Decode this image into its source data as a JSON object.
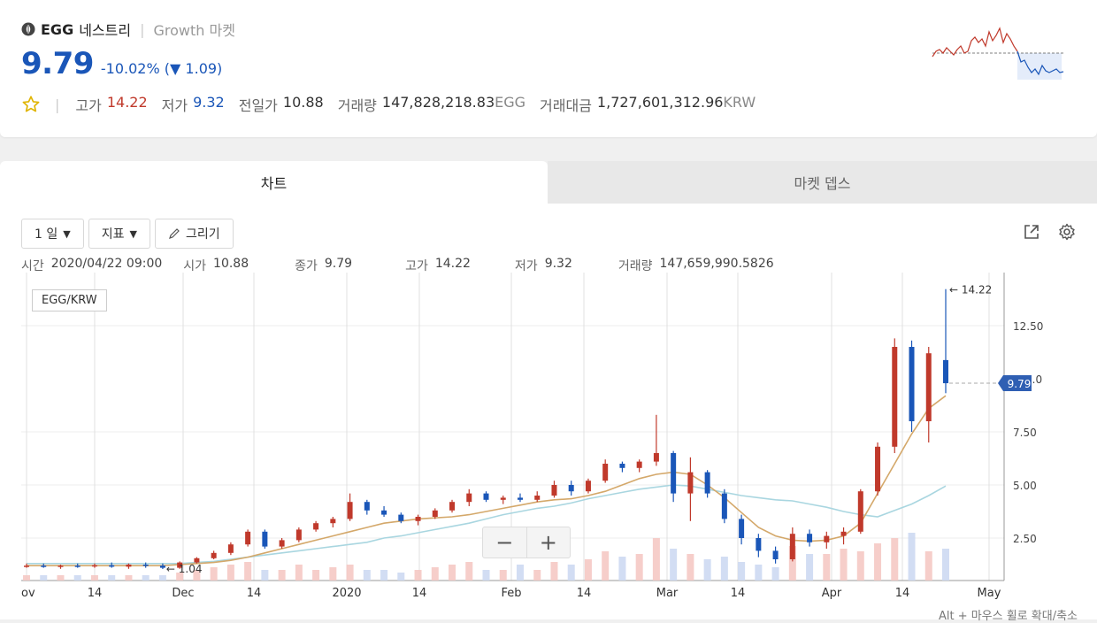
{
  "header": {
    "symbol": "EGG",
    "name_kr": "네스트리",
    "market": "Growth 마켓",
    "price": "9.79",
    "change_pct": "-10.02%",
    "change_paren_open": "(",
    "change_arrow": "▼",
    "change_abs": "1.09)",
    "stats": [
      {
        "label": "고가",
        "value": "14.22",
        "tone": "up",
        "unit": ""
      },
      {
        "label": "저가",
        "value": "9.32",
        "tone": "down",
        "unit": ""
      },
      {
        "label": "전일가",
        "value": "10.88",
        "tone": "",
        "unit": ""
      },
      {
        "label": "거래량",
        "value": "147,828,218.83",
        "tone": "",
        "unit": "EGG"
      },
      {
        "label": "거래대금",
        "value": "1,727,601,312.96",
        "tone": "",
        "unit": "KRW"
      }
    ]
  },
  "tabs": [
    {
      "label": "차트"
    },
    {
      "label": "마켓 뎁스"
    }
  ],
  "toolbar": {
    "interval": "1 일",
    "indicators": "지표",
    "draw": "그리기"
  },
  "ohlc": [
    {
      "label": "시간",
      "value": "2020/04/22 09:00"
    },
    {
      "label": "시가",
      "value": "10.88"
    },
    {
      "label": "종가",
      "value": "9.79"
    },
    {
      "label": "고가",
      "value": "14.22"
    },
    {
      "label": "저가",
      "value": "9.32"
    },
    {
      "label": "거래량",
      "value": "147,659,990.5826"
    }
  ],
  "pair": "EGG/KRW",
  "zoom_minus": "−",
  "zoom_plus": "+",
  "hint": "Alt + 마우스 휠로 확대/축소",
  "colors": {
    "up": "#c0392b",
    "down": "#1a56b8",
    "ma_short": "#d4a86a",
    "ma_long": "#a9d6e0"
  },
  "chart_data": {
    "type": "candlestick",
    "y_ticks": [
      "2.50",
      "5.00",
      "7.50",
      "12.50"
    ],
    "ylim": [
      0.5,
      15
    ],
    "x_ticks": [
      "ov",
      "14",
      "Dec",
      "14",
      "2020",
      "14",
      "Feb",
      "14",
      "Mar",
      "14",
      "Apr",
      "14",
      "May"
    ],
    "high_label": "← 14.22",
    "low_label": "← 1.04",
    "last_price": "9.79",
    "partial_tick": "0.0",
    "ma_short": [
      1.2,
      1.2,
      1.2,
      1.2,
      1.2,
      1.2,
      1.2,
      1.2,
      1.2,
      1.25,
      1.3,
      1.35,
      1.45,
      1.6,
      1.8,
      2.0,
      2.2,
      2.4,
      2.6,
      2.8,
      3.0,
      3.2,
      3.3,
      3.4,
      3.45,
      3.5,
      3.6,
      3.75,
      3.9,
      4.05,
      4.2,
      4.3,
      4.35,
      4.5,
      4.7,
      5.0,
      5.3,
      5.5,
      5.6,
      5.5,
      5.0,
      4.4,
      3.7,
      3.0,
      2.6,
      2.4,
      2.35,
      2.4,
      2.6,
      3.2,
      4.6,
      6.0,
      7.4,
      8.6,
      9.2
    ],
    "ma_long": [
      1.3,
      1.3,
      1.3,
      1.3,
      1.3,
      1.3,
      1.3,
      1.3,
      1.3,
      1.3,
      1.35,
      1.4,
      1.5,
      1.6,
      1.7,
      1.8,
      1.9,
      2.0,
      2.1,
      2.2,
      2.3,
      2.5,
      2.6,
      2.75,
      2.9,
      3.05,
      3.2,
      3.4,
      3.6,
      3.75,
      3.9,
      4.0,
      4.15,
      4.35,
      4.5,
      4.65,
      4.8,
      4.9,
      5.0,
      4.95,
      4.8,
      4.65,
      4.5,
      4.4,
      4.3,
      4.25,
      4.1,
      3.95,
      3.75,
      3.6,
      3.5,
      3.8,
      4.1,
      4.5,
      4.95
    ],
    "candles": [
      {
        "o": 1.2,
        "h": 1.3,
        "l": 1.1,
        "c": 1.2
      },
      {
        "o": 1.2,
        "h": 1.3,
        "l": 1.1,
        "c": 1.15
      },
      {
        "o": 1.15,
        "h": 1.25,
        "l": 1.05,
        "c": 1.2
      },
      {
        "o": 1.2,
        "h": 1.3,
        "l": 1.1,
        "c": 1.18
      },
      {
        "o": 1.18,
        "h": 1.3,
        "l": 1.1,
        "c": 1.22
      },
      {
        "o": 1.22,
        "h": 1.35,
        "l": 1.1,
        "c": 1.15
      },
      {
        "o": 1.15,
        "h": 1.3,
        "l": 1.05,
        "c": 1.25
      },
      {
        "o": 1.25,
        "h": 1.35,
        "l": 1.1,
        "c": 1.2
      },
      {
        "o": 1.2,
        "h": 1.3,
        "l": 1.04,
        "c": 1.1
      },
      {
        "o": 1.1,
        "h": 1.4,
        "l": 1.05,
        "c": 1.35
      },
      {
        "o": 1.35,
        "h": 1.6,
        "l": 1.3,
        "c": 1.55
      },
      {
        "o": 1.55,
        "h": 1.9,
        "l": 1.5,
        "c": 1.8
      },
      {
        "o": 1.8,
        "h": 2.3,
        "l": 1.7,
        "c": 2.2
      },
      {
        "o": 2.2,
        "h": 2.9,
        "l": 2.1,
        "c": 2.8
      },
      {
        "o": 2.8,
        "h": 2.9,
        "l": 2.0,
        "c": 2.1
      },
      {
        "o": 2.1,
        "h": 2.5,
        "l": 2.0,
        "c": 2.4
      },
      {
        "o": 2.4,
        "h": 3.0,
        "l": 2.3,
        "c": 2.9
      },
      {
        "o": 2.9,
        "h": 3.3,
        "l": 2.8,
        "c": 3.2
      },
      {
        "o": 3.2,
        "h": 3.5,
        "l": 3.0,
        "c": 3.4
      },
      {
        "o": 3.4,
        "h": 4.6,
        "l": 3.3,
        "c": 4.2
      },
      {
        "o": 4.2,
        "h": 4.3,
        "l": 3.6,
        "c": 3.8
      },
      {
        "o": 3.8,
        "h": 4.0,
        "l": 3.5,
        "c": 3.6
      },
      {
        "o": 3.6,
        "h": 3.7,
        "l": 3.2,
        "c": 3.3
      },
      {
        "o": 3.3,
        "h": 3.6,
        "l": 3.1,
        "c": 3.5
      },
      {
        "o": 3.5,
        "h": 3.9,
        "l": 3.4,
        "c": 3.8
      },
      {
        "o": 3.8,
        "h": 4.3,
        "l": 3.7,
        "c": 4.2
      },
      {
        "o": 4.2,
        "h": 4.8,
        "l": 4.0,
        "c": 4.6
      },
      {
        "o": 4.6,
        "h": 4.7,
        "l": 4.2,
        "c": 4.3
      },
      {
        "o": 4.3,
        "h": 4.5,
        "l": 4.1,
        "c": 4.4
      },
      {
        "o": 4.4,
        "h": 4.6,
        "l": 4.2,
        "c": 4.3
      },
      {
        "o": 4.3,
        "h": 4.7,
        "l": 4.2,
        "c": 4.5
      },
      {
        "o": 4.5,
        "h": 5.2,
        "l": 4.4,
        "c": 5.0
      },
      {
        "o": 5.0,
        "h": 5.2,
        "l": 4.5,
        "c": 4.7
      },
      {
        "o": 4.7,
        "h": 5.3,
        "l": 4.6,
        "c": 5.2
      },
      {
        "o": 5.2,
        "h": 6.2,
        "l": 5.1,
        "c": 6.0
      },
      {
        "o": 6.0,
        "h": 6.1,
        "l": 5.6,
        "c": 5.8
      },
      {
        "o": 5.8,
        "h": 6.2,
        "l": 5.6,
        "c": 6.1
      },
      {
        "o": 6.1,
        "h": 8.3,
        "l": 5.9,
        "c": 6.5
      },
      {
        "o": 6.5,
        "h": 6.6,
        "l": 4.2,
        "c": 4.6
      },
      {
        "o": 4.6,
        "h": 6.3,
        "l": 3.3,
        "c": 5.6
      },
      {
        "o": 5.6,
        "h": 5.7,
        "l": 4.4,
        "c": 4.6
      },
      {
        "o": 4.6,
        "h": 4.8,
        "l": 3.2,
        "c": 3.4
      },
      {
        "o": 3.4,
        "h": 3.6,
        "l": 2.2,
        "c": 2.5
      },
      {
        "o": 2.5,
        "h": 2.7,
        "l": 1.6,
        "c": 1.9
      },
      {
        "o": 1.9,
        "h": 2.1,
        "l": 1.3,
        "c": 1.5
      },
      {
        "o": 1.5,
        "h": 3.0,
        "l": 1.4,
        "c": 2.7
      },
      {
        "o": 2.7,
        "h": 2.9,
        "l": 2.1,
        "c": 2.3
      },
      {
        "o": 2.3,
        "h": 2.8,
        "l": 2.0,
        "c": 2.6
      },
      {
        "o": 2.6,
        "h": 3.0,
        "l": 2.2,
        "c": 2.8
      },
      {
        "o": 2.8,
        "h": 4.8,
        "l": 2.7,
        "c": 4.7
      },
      {
        "o": 4.7,
        "h": 7.0,
        "l": 4.5,
        "c": 6.8
      },
      {
        "o": 6.8,
        "h": 11.9,
        "l": 6.5,
        "c": 11.5
      },
      {
        "o": 11.5,
        "h": 11.8,
        "l": 7.5,
        "c": 8.0
      },
      {
        "o": 8.0,
        "h": 11.5,
        "l": 7.0,
        "c": 11.2
      },
      {
        "o": 10.88,
        "h": 14.22,
        "l": 9.32,
        "c": 9.79
      }
    ],
    "volumes": [
      0.1,
      0.1,
      0.1,
      0.1,
      0.1,
      0.1,
      0.1,
      0.1,
      0.1,
      0.15,
      0.2,
      0.25,
      0.3,
      0.35,
      0.2,
      0.2,
      0.3,
      0.2,
      0.25,
      0.3,
      0.2,
      0.2,
      0.15,
      0.2,
      0.25,
      0.3,
      0.35,
      0.2,
      0.2,
      0.3,
      0.2,
      0.35,
      0.3,
      0.4,
      0.55,
      0.45,
      0.5,
      0.8,
      0.6,
      0.5,
      0.4,
      0.45,
      0.35,
      0.3,
      0.25,
      0.65,
      0.5,
      0.5,
      0.6,
      0.55,
      0.7,
      0.8,
      0.9,
      0.55,
      0.6
    ]
  }
}
